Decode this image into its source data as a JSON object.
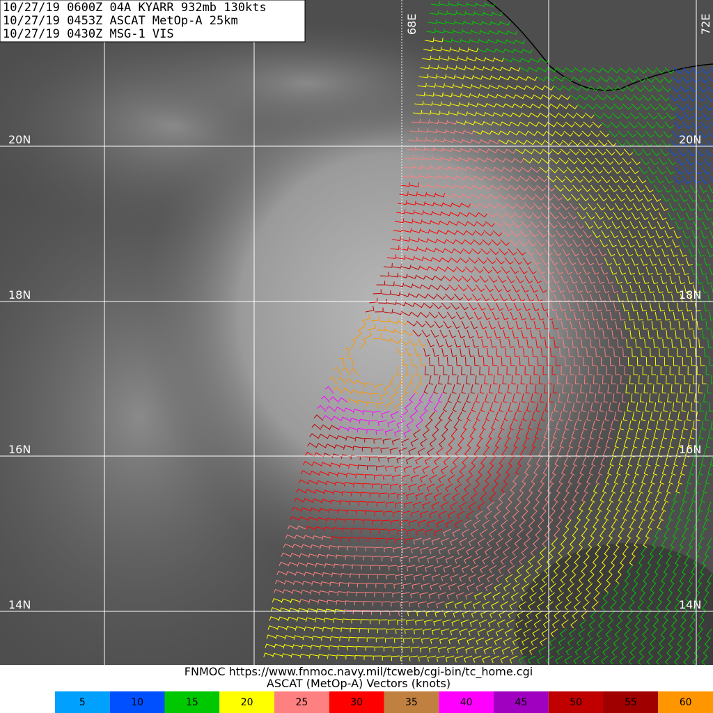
{
  "header": {
    "lines": [
      "10/27/19 0600Z  04A KYARR 932mb 130kts",
      "10/27/19 0453Z  ASCAT MetOp-A 25km",
      "10/27/19 0430Z  MSG-1 VIS"
    ]
  },
  "grid": {
    "lat_labels": [
      "20N",
      "18N",
      "16N",
      "14N"
    ],
    "lon_labels": [
      "68E",
      "72E"
    ]
  },
  "footer": {
    "lines": [
      "FNMOC https://www.fnmoc.navy.mil/tcweb/cgi-bin/tc_home.cgi",
      "ASCAT (MetOp-A) Vectors (knots)"
    ]
  },
  "legend": {
    "items": [
      {
        "label": "5",
        "color": "#00a0ff"
      },
      {
        "label": "10",
        "color": "#0050ff"
      },
      {
        "label": "15",
        "color": "#00c800"
      },
      {
        "label": "20",
        "color": "#ffff00"
      },
      {
        "label": "25",
        "color": "#ff8080"
      },
      {
        "label": "30",
        "color": "#ff0000"
      },
      {
        "label": "35",
        "color": "#c08040"
      },
      {
        "label": "40",
        "color": "#ff00ff"
      },
      {
        "label": "45",
        "color": "#a000c0"
      },
      {
        "label": "50",
        "color": "#c00000"
      },
      {
        "label": "55",
        "color": "#a00000"
      },
      {
        "label": "60",
        "color": "#ff9600"
      }
    ]
  }
}
